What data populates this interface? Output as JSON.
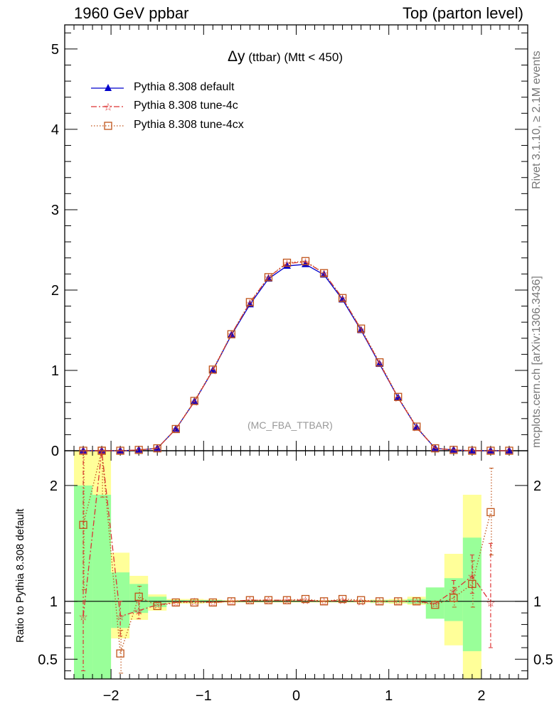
{
  "header": {
    "left": "1960 GeV ppbar",
    "right": "Top (parton level)"
  },
  "side": {
    "rivet": "Rivet 3.1.10, ≥ 2.1M events",
    "mcplots": "mcplots.cern.ch [arXiv:1306.3436]"
  },
  "title": {
    "main": "Δy",
    "sub": "(ttbar) (Mtt < 450)"
  },
  "watermark": "(MC_FBA_TTBAR)",
  "ratio_ylabel": "Ratio to Pythia 8.308 default",
  "legend": [
    {
      "name": "Pythia 8.308 default",
      "color": "#0000cc",
      "marker": "triangle",
      "dash": "solid"
    },
    {
      "name": "Pythia 8.308 tune-4c",
      "color": "#dd3333",
      "marker": "star",
      "dash": "dashdot"
    },
    {
      "name": "Pythia 8.308 tune-4cx",
      "color": "#c0541a",
      "marker": "open-square",
      "dash": "dotted"
    }
  ],
  "chart_data": {
    "type": "line",
    "xlim": [
      -2.5,
      2.5
    ],
    "main": {
      "ylim": [
        0,
        5.3
      ],
      "yticks": [
        0,
        1,
        2,
        3,
        4,
        5
      ],
      "yticklabels": [
        "0",
        "1",
        "2",
        "3",
        "4",
        "5"
      ]
    },
    "ratio": {
      "ylim": [
        0.33,
        2.3
      ],
      "yticks": [
        0.5,
        1,
        2
      ],
      "yticklabels": [
        "0.5",
        "1",
        "2"
      ],
      "reference": 1
    },
    "xticks": [
      -2,
      -1,
      0,
      1,
      2
    ],
    "xticklabels": [
      "−2",
      "−1",
      "0",
      "1",
      "2"
    ],
    "x": [
      -2.3,
      -2.1,
      -1.9,
      -1.7,
      -1.5,
      -1.3,
      -1.1,
      -0.9,
      -0.7,
      -0.5,
      -0.3,
      -0.1,
      0.1,
      0.3,
      0.5,
      0.7,
      0.9,
      1.1,
      1.3,
      1.5,
      1.7,
      1.9,
      2.1,
      2.3
    ],
    "series": [
      {
        "name": "Pythia 8.308 default",
        "values": [
          0.0,
          0.0,
          0.0,
          0.01,
          0.03,
          0.27,
          0.61,
          1.0,
          1.44,
          1.82,
          2.14,
          2.3,
          2.32,
          2.19,
          1.88,
          1.5,
          1.08,
          0.66,
          0.29,
          0.03,
          0.01,
          0.0,
          0.0,
          0.0
        ],
        "ratio": [
          1,
          1,
          1,
          1,
          1,
          1,
          1,
          1,
          1,
          1,
          1,
          1,
          1,
          1,
          1,
          1,
          1,
          1,
          1,
          1,
          1,
          1,
          1,
          1
        ]
      },
      {
        "name": "Pythia 8.308 tune-4c",
        "values": [
          0.0,
          0.0,
          0.0,
          0.01,
          0.03,
          0.27,
          0.61,
          1.0,
          1.45,
          1.84,
          2.16,
          2.33,
          2.35,
          2.21,
          1.9,
          1.51,
          1.09,
          0.66,
          0.29,
          0.03,
          0.01,
          0.0,
          0.0,
          0.0
        ],
        "ratio": [
          0.87,
          2.3,
          0.87,
          0.92,
          0.97,
          0.99,
          1.0,
          0.99,
          1.0,
          1.01,
          1.01,
          1.01,
          1.01,
          1.0,
          1.01,
          1.0,
          1.0,
          1.0,
          1.0,
          0.98,
          1.09,
          1.22,
          0.99,
          null
        ]
      },
      {
        "name": "Pythia 8.308 tune-4cx",
        "values": [
          0.0,
          0.0,
          0.0,
          0.01,
          0.03,
          0.27,
          0.62,
          1.01,
          1.45,
          1.85,
          2.16,
          2.34,
          2.36,
          2.21,
          1.9,
          1.52,
          1.1,
          0.67,
          0.3,
          0.03,
          0.01,
          0.0,
          0.0,
          0.0
        ],
        "ratio": [
          1.66,
          2.32,
          0.55,
          1.04,
          0.96,
          0.99,
          0.99,
          0.99,
          1.0,
          1.01,
          1.01,
          1.01,
          1.02,
          1.0,
          1.02,
          1.01,
          1.0,
          1.0,
          1.0,
          0.97,
          1.03,
          1.15,
          1.77,
          null
        ]
      }
    ],
    "ratio_errors": {
      "tune4c": [
        [
          0.4,
          2.3
        ],
        null,
        [
          0.7,
          1.0
        ],
        [
          0.85,
          1.0
        ],
        null,
        null,
        null,
        null,
        null,
        null,
        null,
        null,
        null,
        null,
        null,
        null,
        null,
        null,
        null,
        null,
        [
          1.0,
          1.18
        ],
        [
          1.07,
          1.4
        ],
        [
          0.6,
          1.5
        ],
        null
      ],
      "tune4cx": [
        [
          1.1,
          2.3
        ],
        [
          1.9,
          2.3
        ],
        [
          0.38,
          0.75
        ],
        [
          0.9,
          1.13
        ],
        null,
        null,
        null,
        null,
        null,
        null,
        null,
        null,
        null,
        null,
        null,
        null,
        null,
        null,
        null,
        null,
        [
          0.95,
          1.12
        ],
        [
          0.95,
          1.35
        ],
        [
          1.4,
          2.15
        ],
        null
      ]
    },
    "band_edges": [
      -2.4,
      -2.2,
      -2.0,
      -1.8,
      -1.6,
      -1.4,
      -1.2,
      -1.0,
      -0.8,
      -0.6,
      -0.4,
      -0.2,
      0.0,
      0.2,
      0.4,
      0.6,
      0.8,
      1.0,
      1.2,
      1.4,
      1.6,
      1.8,
      2.0,
      2.2
    ],
    "band_yellow": [
      [
        0.33,
        2.3
      ],
      [
        0.33,
        2.3
      ],
      [
        0.68,
        1.42
      ],
      [
        0.84,
        1.22
      ],
      [
        0.92,
        1.06
      ],
      [
        0.98,
        1.02
      ],
      [
        0.98,
        1.02
      ],
      [
        0.985,
        1.015
      ],
      [
        0.99,
        1.01
      ],
      [
        0.99,
        1.01
      ],
      [
        0.99,
        1.01
      ],
      [
        0.99,
        1.01
      ],
      [
        0.99,
        1.01
      ],
      [
        0.99,
        1.01
      ],
      [
        0.99,
        1.01
      ],
      [
        0.99,
        1.01
      ],
      [
        0.985,
        1.015
      ],
      [
        0.98,
        1.02
      ],
      [
        0.97,
        1.04
      ],
      [
        0.93,
        1.1
      ],
      [
        0.62,
        1.41
      ],
      [
        0.33,
        1.92
      ]
    ],
    "band_green": [
      [
        0.33,
        2.0
      ],
      [
        0.33,
        1.92
      ],
      [
        0.77,
        1.25
      ],
      [
        0.9,
        1.15
      ],
      [
        0.95,
        1.04
      ],
      [
        0.99,
        1.01
      ],
      [
        0.99,
        1.01
      ],
      [
        0.99,
        1.01
      ],
      [
        0.995,
        1.005
      ],
      [
        0.995,
        1.005
      ],
      [
        0.995,
        1.005
      ],
      [
        0.995,
        1.005
      ],
      [
        0.995,
        1.005
      ],
      [
        0.995,
        1.005
      ],
      [
        0.995,
        1.005
      ],
      [
        0.995,
        1.005
      ],
      [
        0.99,
        1.01
      ],
      [
        0.99,
        1.01
      ],
      [
        0.98,
        1.02
      ],
      [
        0.85,
        1.12
      ],
      [
        0.83,
        1.2
      ],
      [
        0.57,
        1.55
      ]
    ]
  }
}
